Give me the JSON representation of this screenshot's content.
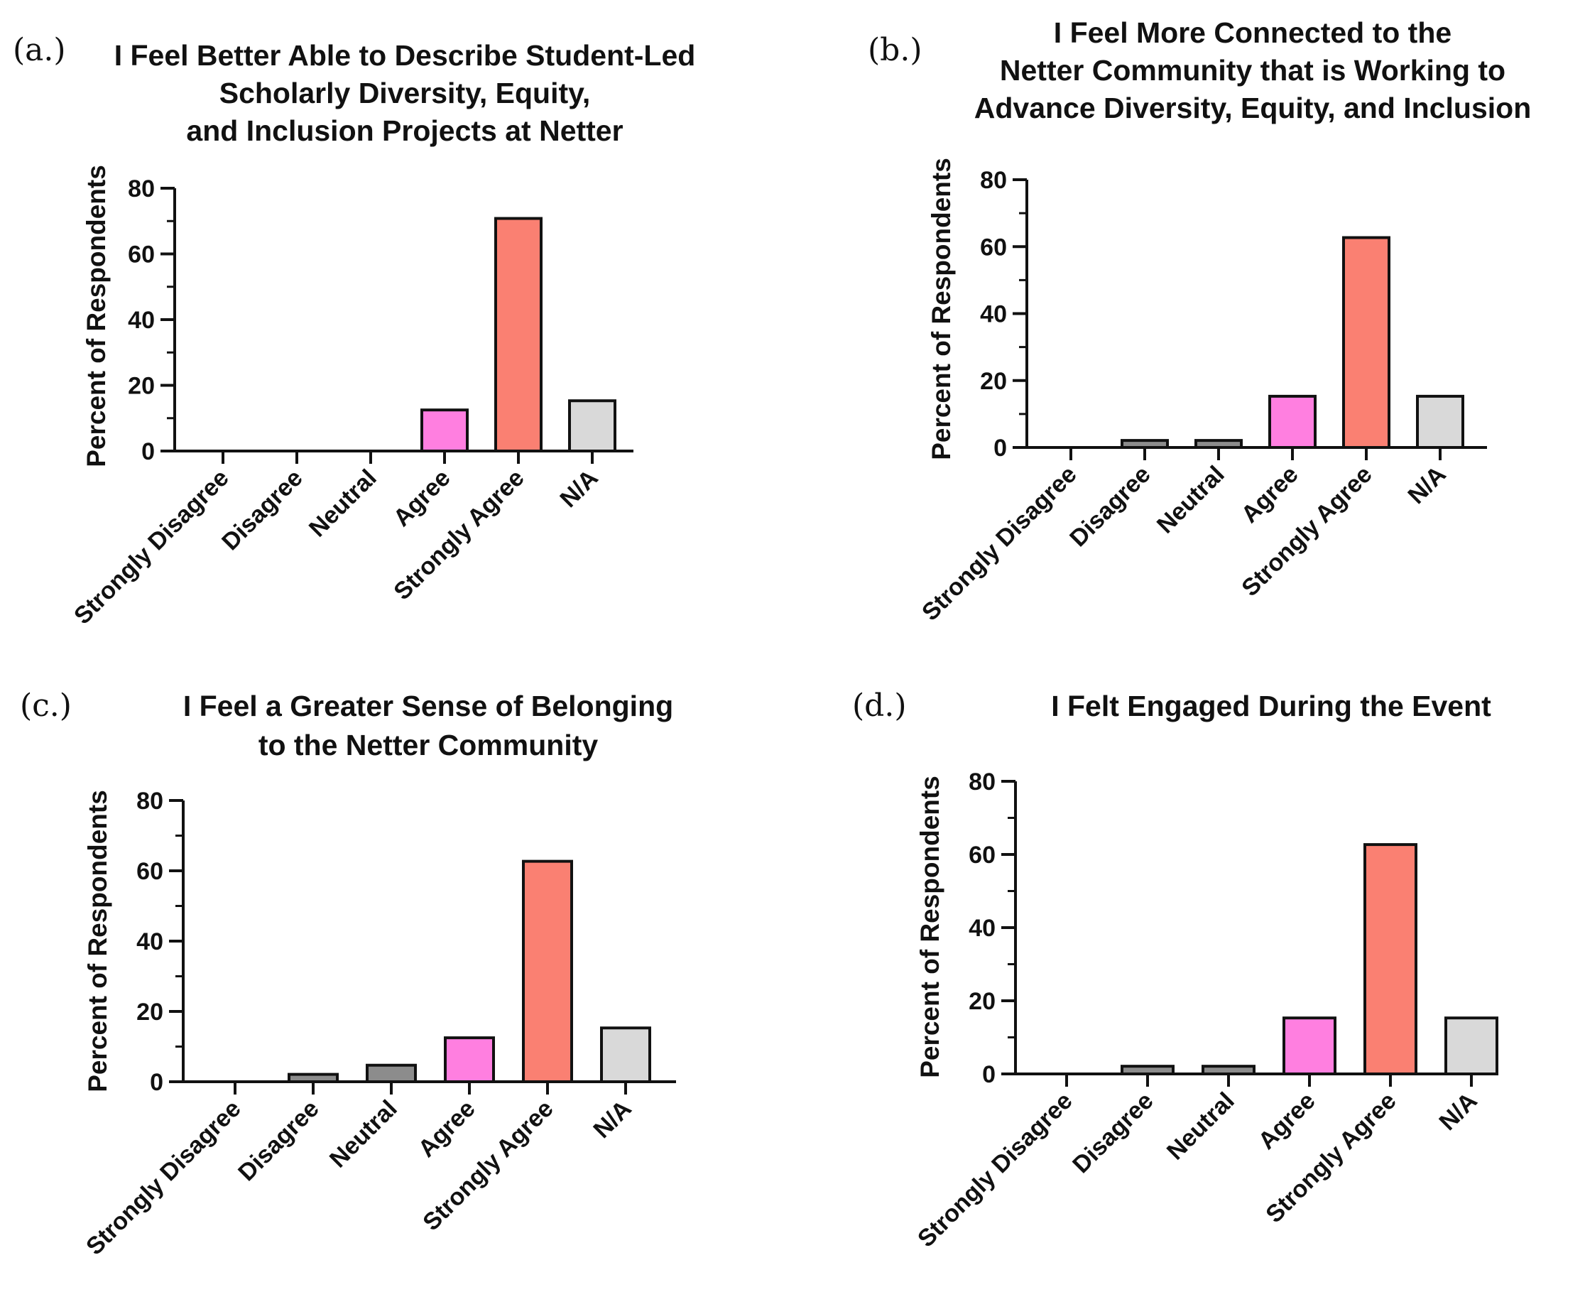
{
  "chart_data": [
    {
      "type": "bar",
      "panel": "(a.)",
      "title_lines": [
        "I Feel Better Able to Describe Student-Led",
        "Scholarly Diversity, Equity,",
        "and Inclusion Projects at Netter"
      ],
      "ylabel": "Percent of Respondents",
      "categories": [
        "Strongly Disagree",
        "Disagree",
        "Neutral",
        "Agree",
        "Strongly Agree",
        "N/A"
      ],
      "values": [
        0,
        0,
        0,
        12.5,
        70.8,
        15.3
      ],
      "ylim": [
        0,
        80
      ],
      "yticks": [
        "0",
        "20",
        "40",
        "60",
        "80"
      ]
    },
    {
      "type": "bar",
      "panel": "(b.)",
      "title_lines": [
        "I Feel More Connected to the",
        "Netter Community that is Working to",
        "Advance Diversity, Equity, and Inclusion"
      ],
      "ylabel": "Percent of Respondents",
      "categories": [
        "Strongly Disagree",
        "Disagree",
        "Neutral",
        "Agree",
        "Strongly Agree",
        "N/A"
      ],
      "values": [
        0,
        2.1,
        2.1,
        15.3,
        62.7,
        15.3
      ],
      "ylim": [
        0,
        80
      ],
      "yticks": [
        "0",
        "20",
        "40",
        "60",
        "80"
      ]
    },
    {
      "type": "bar",
      "panel": "(c.)",
      "title_lines": [
        "I Feel a Greater Sense of Belonging",
        "to the Netter Community"
      ],
      "ylabel": "Percent of Respondents",
      "categories": [
        "Strongly Disagree",
        "Disagree",
        "Neutral",
        "Agree",
        "Strongly Agree",
        "N/A"
      ],
      "values": [
        0,
        2.1,
        4.7,
        12.5,
        62.7,
        15.3
      ],
      "ylim": [
        0,
        80
      ],
      "yticks": [
        "0",
        "20",
        "40",
        "60",
        "80"
      ]
    },
    {
      "type": "bar",
      "panel": "(d.)",
      "title_lines": [
        "I Felt Engaged During the Event"
      ],
      "ylabel": "Percent of Respondents",
      "categories": [
        "Strongly Disagree",
        "Disagree",
        "Neutral",
        "Agree",
        "Strongly Agree",
        "N/A"
      ],
      "values": [
        0,
        2.1,
        2.1,
        15.3,
        62.7,
        15.3
      ],
      "ylim": [
        0,
        80
      ],
      "yticks": [
        "0",
        "20",
        "40",
        "60",
        "80"
      ]
    }
  ],
  "colors": {
    "Strongly Disagree": "#8c8c8c",
    "Disagree": "#8c8c8c",
    "Neutral": "#8c8c8c",
    "Agree": "#ff7fe0",
    "Strongly Agree": "#fa8072",
    "N/A": "#d9d9d9",
    "axis": "#111111"
  }
}
